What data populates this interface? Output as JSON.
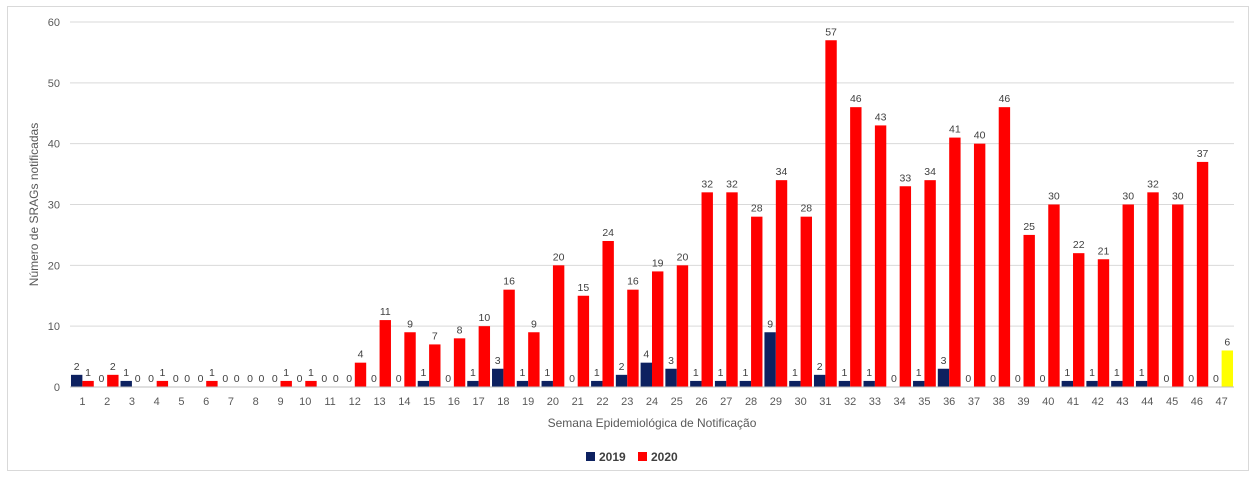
{
  "chart_data": {
    "type": "bar",
    "title": "",
    "xlabel": "Semana Epidemiológica de Notificação",
    "ylabel": "Número de SRAGs notificadas",
    "ylim": [
      0,
      60
    ],
    "yticks": [
      0,
      10,
      20,
      30,
      40,
      50,
      60
    ],
    "grid": true,
    "legend_position": "bottom",
    "categories": [
      "1",
      "2",
      "3",
      "4",
      "5",
      "6",
      "7",
      "8",
      "9",
      "10",
      "11",
      "12",
      "13",
      "14",
      "15",
      "16",
      "17",
      "18",
      "19",
      "20",
      "21",
      "22",
      "23",
      "24",
      "25",
      "26",
      "27",
      "28",
      "29",
      "30",
      "31",
      "32",
      "33",
      "34",
      "35",
      "36",
      "37",
      "38",
      "39",
      "40",
      "41",
      "42",
      "43",
      "44",
      "45",
      "46",
      "47"
    ],
    "series": [
      {
        "name": "2019",
        "color": "#0d2160",
        "values": [
          2,
          0,
          1,
          0,
          0,
          0,
          0,
          0,
          0,
          0,
          0,
          0,
          0,
          0,
          1,
          0,
          1,
          3,
          1,
          1,
          0,
          1,
          2,
          4,
          3,
          1,
          1,
          1,
          9,
          1,
          2,
          1,
          1,
          0,
          1,
          3,
          0,
          0,
          0,
          0,
          1,
          1,
          1,
          1,
          0,
          0,
          0
        ]
      },
      {
        "name": "2020",
        "color": "#ff0000",
        "highlight_color": "#ffff00",
        "highlight_index": 46,
        "values": [
          1,
          2,
          0,
          1,
          0,
          1,
          0,
          0,
          1,
          1,
          0,
          4,
          11,
          9,
          7,
          8,
          10,
          16,
          9,
          20,
          15,
          24,
          16,
          19,
          20,
          32,
          32,
          28,
          34,
          28,
          57,
          46,
          43,
          33,
          34,
          41,
          40,
          46,
          25,
          30,
          22,
          21,
          30,
          32,
          30,
          37,
          6
        ]
      }
    ]
  }
}
